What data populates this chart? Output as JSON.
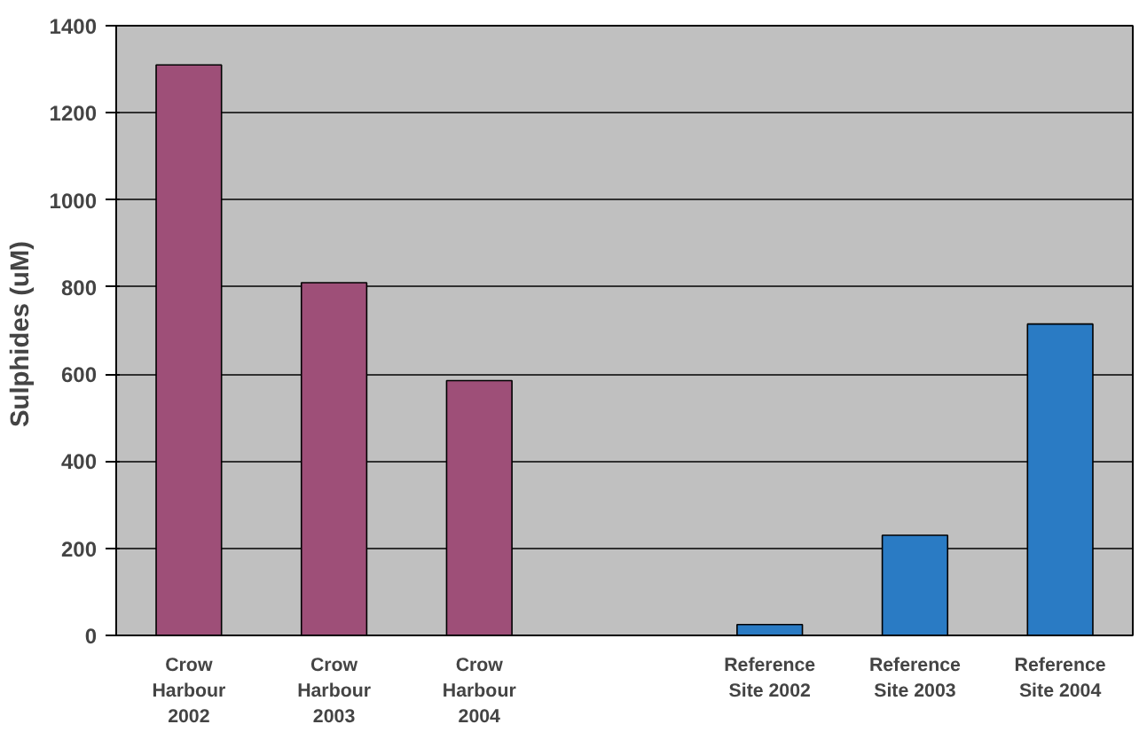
{
  "chart_data": {
    "type": "bar",
    "ylabel": "Sulphides  (uM)",
    "categories": [
      "Crow\nHarbour\n2002",
      "Crow\nHarbour\n2003",
      "Crow\nHarbour\n2004",
      null,
      "Reference\nSite 2002",
      "Reference\nSite 2003",
      "Reference\nSite 2004"
    ],
    "values": [
      1310,
      810,
      585,
      null,
      25,
      230,
      715
    ],
    "colors": [
      "#9e4f78",
      "#9e4f78",
      "#9e4f78",
      null,
      "#2a7bc4",
      "#2a7bc4",
      "#2a7bc4"
    ],
    "ylim": [
      0,
      1400
    ],
    "yticks": [
      0,
      200,
      400,
      600,
      800,
      1000,
      1200,
      1400
    ],
    "grid": "y"
  }
}
